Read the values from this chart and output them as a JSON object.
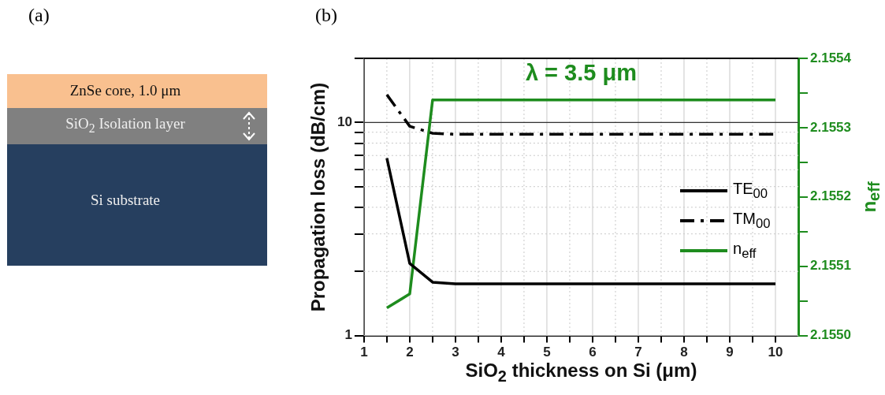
{
  "chart_data": [
    {
      "type": "other",
      "title": "(a)",
      "annotations": [
        "ZnSe core, 1.0 μm",
        "SiO$_{2}$ Isolation layer",
        "Si substrate"
      ]
    },
    {
      "type": "line",
      "title": "(b)",
      "xlabel": "SiO$_{2}$ thickness on Si (μm)",
      "ylabel": "Propagation loss (dB/cm)",
      "y2label": "n$_{eff}$",
      "annotations": [
        "λ = 3.5 μm"
      ],
      "x": [
        1.5,
        2,
        2.5,
        3,
        4,
        5,
        6,
        7,
        8,
        9,
        10
      ],
      "series": [
        {
          "name": "TE$_{00}$",
          "color": "#000000",
          "line_style": "solid",
          "values": [
            6.8,
            2.18,
            1.78,
            1.75,
            1.75,
            1.75,
            1.75,
            1.75,
            1.75,
            1.75,
            1.75
          ]
        },
        {
          "name": "TM$_{00}$",
          "color": "#000000",
          "line_style": "dashed",
          "values": [
            13.5,
            9.6,
            8.9,
            8.8,
            8.8,
            8.8,
            8.8,
            8.8,
            8.8,
            8.8,
            8.8
          ]
        },
        {
          "name": "n$_{eff}$",
          "color": "#1e8c1e",
          "line_style": "solid",
          "axis": "y2",
          "values": [
            2.15504,
            2.15506,
            2.15534,
            2.15534,
            2.15534,
            2.15534,
            2.15534,
            2.15534,
            2.15534,
            2.15534,
            2.15534
          ]
        }
      ],
      "xlim": [
        1,
        10.5
      ],
      "xticks": [
        1,
        {
          "value": 1.5,
          "label": null
        },
        2,
        {
          "value": 2.5,
          "label": null
        },
        3,
        {
          "value": 3.5,
          "label": null
        },
        4,
        {
          "value": 4.5,
          "label": null
        },
        5,
        {
          "value": 5.5,
          "label": null
        },
        6,
        {
          "value": 6.5,
          "label": null
        },
        7,
        {
          "value": 7.5,
          "label": null
        },
        8,
        {
          "value": 8.5,
          "label": null
        },
        9,
        {
          "value": 9.5,
          "label": null
        },
        10
      ],
      "ylim": [
        1,
        20
      ],
      "yticks": [
        1,
        {
          "value": 2,
          "label": null
        },
        {
          "value": 3,
          "label": null
        },
        {
          "value": 4,
          "label": null
        },
        {
          "value": 5,
          "label": null
        },
        {
          "value": 6,
          "label": null
        },
        {
          "value": 7,
          "label": null
        },
        {
          "value": 8,
          "label": null
        },
        {
          "value": 9,
          "label": null
        },
        10,
        {
          "value": 20,
          "label": null
        }
      ],
      "log": "y",
      "y2lim": [
        2.155,
        2.1554
      ],
      "y2ticks": [
        {
          "value": 2.155,
          "label": "2.1550"
        },
        {
          "value": 2.15505,
          "label": null
        },
        {
          "value": 2.1551,
          "label": "2.1551"
        },
        {
          "value": 2.15515,
          "label": null
        },
        {
          "value": 2.1552,
          "label": "2.1552"
        },
        {
          "value": 2.15525,
          "label": null
        },
        {
          "value": 2.1553,
          "label": "2.1553"
        },
        {
          "value": 2.15535,
          "label": null
        },
        {
          "value": 2.1554,
          "label": "2.1554"
        }
      ],
      "ref_lines": [
        {
          "axis": "y",
          "value": 10,
          "color": "#333333"
        }
      ],
      "grid": true,
      "legend": "right",
      "marker": "none"
    }
  ]
}
